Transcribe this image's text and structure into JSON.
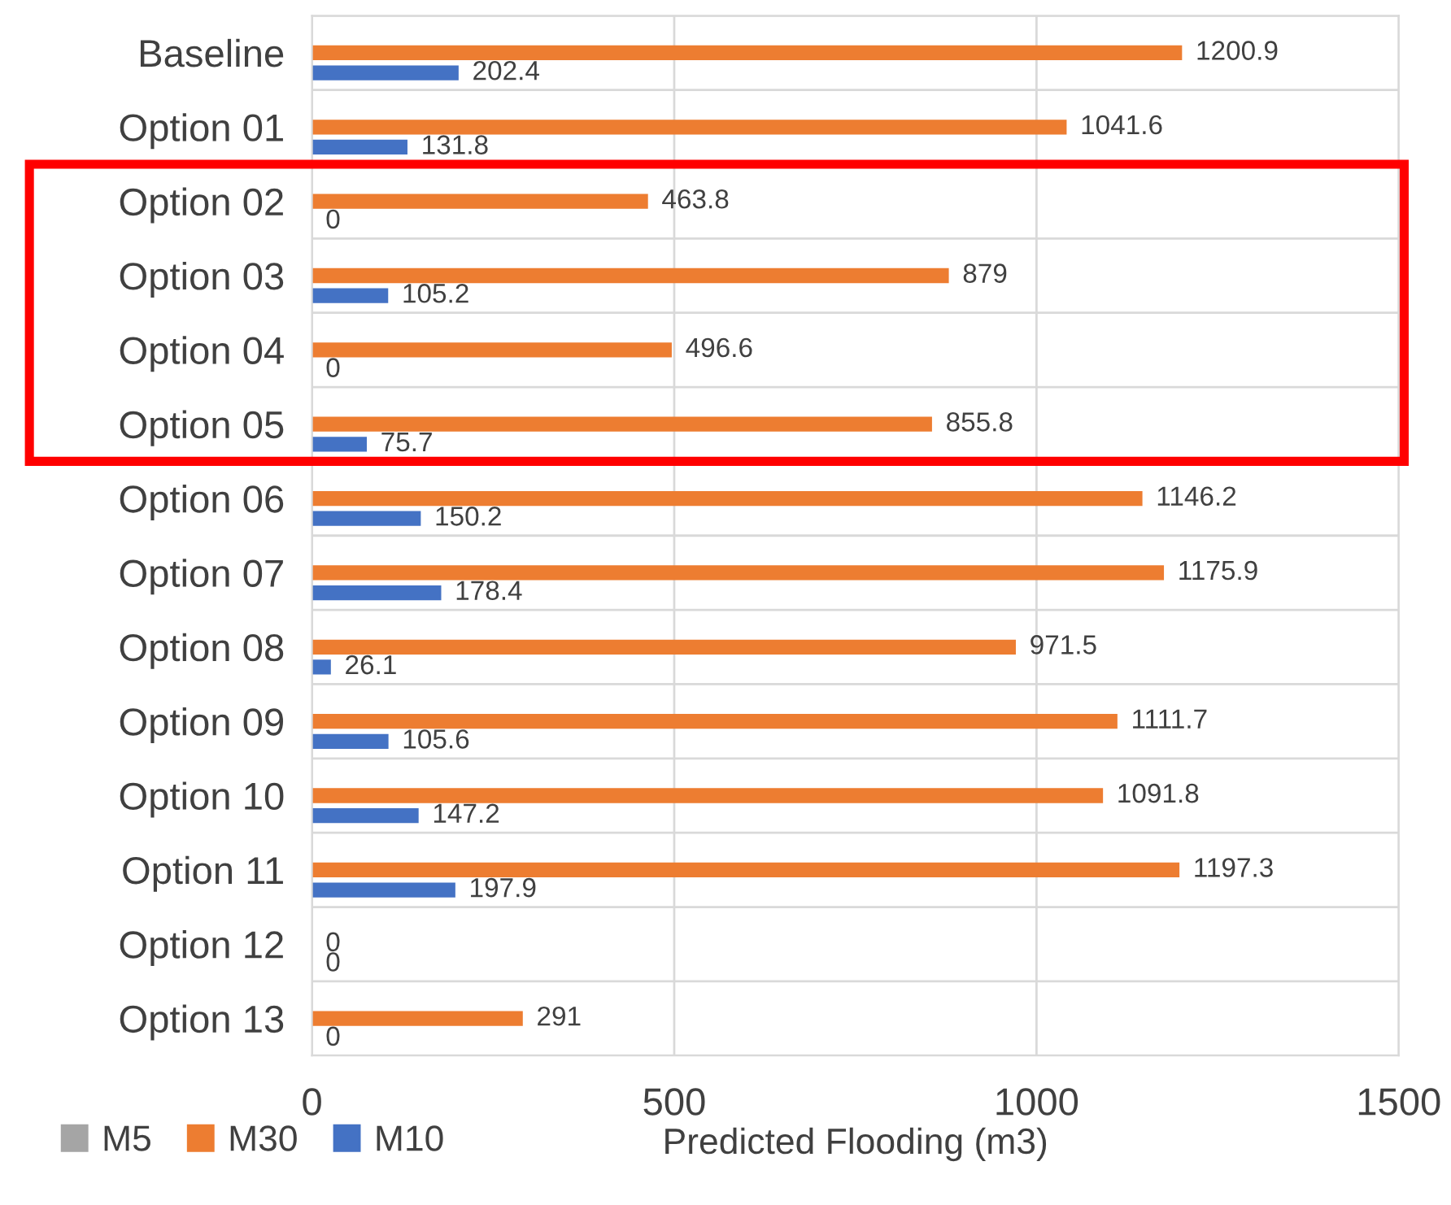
{
  "chart_data": {
    "type": "bar",
    "orientation": "horizontal",
    "xlabel": "Predicted Flooding (m3)",
    "categories": [
      "Baseline",
      "Option 01",
      "Option 02",
      "Option 03",
      "Option 04",
      "Option 05",
      "Option 06",
      "Option 07",
      "Option 08",
      "Option 09",
      "Option 10",
      "Option 11",
      "Option 12",
      "Option 13"
    ],
    "series": [
      {
        "name": "M5",
        "color": "#a5a5a5",
        "values": [
          null,
          null,
          null,
          null,
          null,
          null,
          null,
          null,
          null,
          null,
          null,
          null,
          null,
          null
        ]
      },
      {
        "name": "M30",
        "color": "#ed7d31",
        "values": [
          1200.9,
          1041.6,
          463.8,
          879,
          496.6,
          855.8,
          1146.2,
          1175.9,
          971.5,
          1111.7,
          1091.8,
          1197.3,
          0,
          291
        ]
      },
      {
        "name": "M10",
        "color": "#4472c4",
        "values": [
          202.4,
          131.8,
          0,
          105.2,
          0,
          75.7,
          150.2,
          178.4,
          26.1,
          105.6,
          147.2,
          197.9,
          0,
          0
        ]
      }
    ],
    "xlim": [
      0,
      1500
    ],
    "xticks": [
      0,
      500,
      1000,
      1500
    ],
    "grid": true,
    "legend": "bottom left",
    "data_labels": true
  }
}
